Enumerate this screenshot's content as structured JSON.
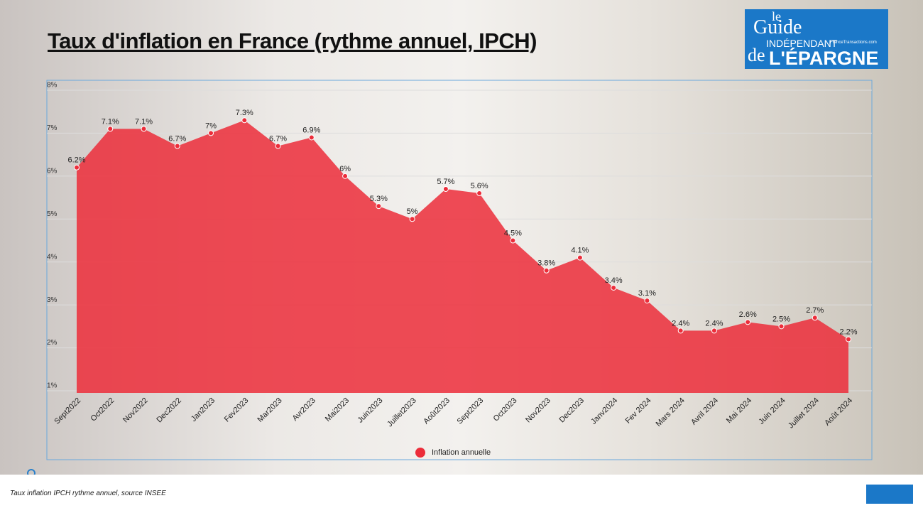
{
  "chart_data": {
    "type": "area",
    "title": "Taux d'inflation en France (rythme annuel, IPCH)",
    "categories": [
      "Sept2022",
      "Oct2022",
      "Nov2022",
      "Dec2022",
      "Jan2023",
      "Fev2023",
      "Mar2023",
      "Avr2023",
      "Mai2023",
      "Juin2023",
      "Juillet2023",
      "Août2023",
      "Sept2023",
      "Oct2023",
      "Nov2023",
      "Dec2023",
      "Janv2024",
      "Fev 2024",
      "Mars 2024",
      "Avril 2024",
      "Mai 2024",
      "Juin 2024",
      "Juillet 2024",
      "Août 2024"
    ],
    "series": [
      {
        "name": "Inflation annuelle",
        "color": "#ec2d3a",
        "values": [
          6.2,
          7.1,
          7.1,
          6.7,
          7,
          7.3,
          6.7,
          6.9,
          6,
          5.3,
          5,
          5.7,
          5.6,
          4.5,
          3.8,
          4.1,
          3.4,
          3.1,
          2.4,
          2.4,
          2.6,
          2.5,
          2.7,
          2.2
        ],
        "value_labels": [
          "6.2%",
          "7.1%",
          "7.1%",
          "6.7%",
          "7%",
          "7.3%",
          "6.7%",
          "6.9%",
          "6%",
          "5.3%",
          "5%",
          "5.7%",
          "5.6%",
          "4.5%",
          "3.8%",
          "4.1%",
          "3.4%",
          "3.1%",
          "2.4%",
          "2.4%",
          "2.6%",
          "2.5%",
          "2.7%",
          "2.2%"
        ]
      }
    ],
    "ylim": [
      1,
      8
    ],
    "yticks": [
      {
        "value": 1,
        "label": "1%"
      },
      {
        "value": 2,
        "label": "2%"
      },
      {
        "value": 3,
        "label": "3%"
      },
      {
        "value": 4,
        "label": "4%"
      },
      {
        "value": 5,
        "label": "5%"
      },
      {
        "value": 6,
        "label": "6%"
      },
      {
        "value": 7,
        "label": "7%"
      },
      {
        "value": 8,
        "label": "8%"
      }
    ],
    "grid": true,
    "legend": "bottom"
  },
  "caption": "Taux inflation IPCH rythme annuel, source INSEE",
  "logo": {
    "line1": "le",
    "line2": "Guide",
    "line3": "INDÉPENDANT",
    "line4": "de",
    "line5": "L'ÉPARGNE",
    "site": "FranceTransactions.com"
  }
}
